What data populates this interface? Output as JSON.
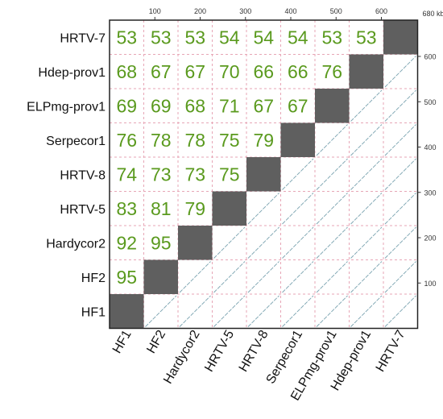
{
  "chart_data": {
    "type": "heatmap",
    "genomes": [
      "HF1",
      "HF2",
      "Hardycor2",
      "HRTV-5",
      "HRTV-8",
      "Serpecor1",
      "ELPmg-prov1",
      "Hdep-prov1",
      "HRTV-7"
    ],
    "identity_matrix_upper_left": [
      [
        53,
        53,
        53,
        54,
        54,
        54,
        53,
        53
      ],
      [
        68,
        67,
        67,
        70,
        66,
        66,
        76
      ],
      [
        69,
        69,
        68,
        71,
        67,
        67
      ],
      [
        76,
        78,
        78,
        75,
        79
      ],
      [
        74,
        73,
        73,
        75
      ],
      [
        83,
        81,
        79
      ],
      [
        92,
        95
      ],
      [
        95
      ]
    ],
    "row_order_top_to_bottom": [
      "HRTV-7",
      "Hdep-prov1",
      "ELPmg-prov1",
      "Serpecor1",
      "HRTV-8",
      "HRTV-5",
      "Hardycor2",
      "HF2",
      "HF1"
    ],
    "top_axis_ticks": [
      "100",
      "200",
      "300",
      "400",
      "500",
      "600"
    ],
    "top_axis_unit_label": "680 kb",
    "right_axis_ticks": [
      "600",
      "500",
      "400",
      "300",
      "200",
      "100"
    ],
    "colors": {
      "identity_text": "#5a9a1e",
      "diagonal_block": "#5f5f5f",
      "grid": "#e7a6b6",
      "dotplot": "#7aa3b0"
    }
  }
}
